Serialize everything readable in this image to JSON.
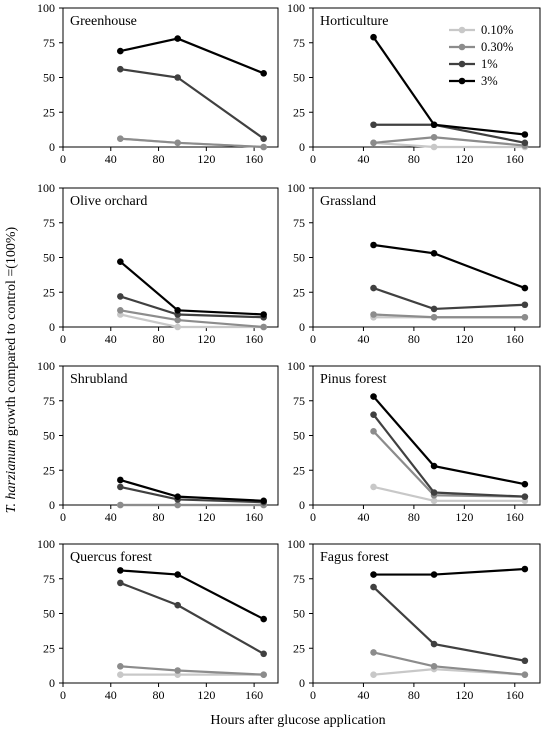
{
  "figure": {
    "ylabel_italic": "T. harzianum",
    "ylabel_rest": " growth compared to control =(100%)",
    "xlabel": "Hours after glucose application"
  },
  "legend": [
    "0.10%",
    "0.30%",
    "1%",
    "3%"
  ],
  "colors": {
    "0.10%": "#c8c8c8",
    "0.30%": "#8c8c8c",
    "1%": "#404040",
    "3%": "#000000"
  },
  "chart_data": [
    {
      "type": "line",
      "title": "Greenhouse",
      "x": [
        48,
        96,
        168
      ],
      "xlim": [
        0,
        180
      ],
      "ylim": [
        0,
        100
      ],
      "xticks": [
        "0",
        "40",
        "80",
        "120",
        "160"
      ],
      "yticks": [
        "0",
        "25",
        "50",
        "75",
        "100"
      ],
      "series": [
        {
          "name": "0.10%",
          "values": [
            6,
            3,
            0
          ]
        },
        {
          "name": "0.30%",
          "values": [
            6,
            3,
            0
          ]
        },
        {
          "name": "1%",
          "values": [
            56,
            50,
            6
          ]
        },
        {
          "name": "3%",
          "values": [
            69,
            78,
            53
          ]
        }
      ]
    },
    {
      "type": "line",
      "title": "Horticulture",
      "x": [
        48,
        96,
        168
      ],
      "xlim": [
        0,
        180
      ],
      "ylim": [
        0,
        100
      ],
      "xticks": [
        "0",
        "40",
        "80",
        "120",
        "160"
      ],
      "yticks": [
        "0",
        "25",
        "50",
        "75",
        "100"
      ],
      "series": [
        {
          "name": "0.10%",
          "values": [
            3,
            0,
            0
          ]
        },
        {
          "name": "0.30%",
          "values": [
            3,
            7,
            1
          ]
        },
        {
          "name": "1%",
          "values": [
            16,
            16,
            3
          ]
        },
        {
          "name": "3%",
          "values": [
            79,
            16,
            9
          ]
        }
      ]
    },
    {
      "type": "line",
      "title": "Olive orchard",
      "x": [
        48,
        96,
        168
      ],
      "xlim": [
        0,
        180
      ],
      "ylim": [
        0,
        100
      ],
      "xticks": [
        "0",
        "40",
        "80",
        "120",
        "160"
      ],
      "yticks": [
        "0",
        "25",
        "50",
        "75",
        "100"
      ],
      "series": [
        {
          "name": "0.10%",
          "values": [
            9,
            0,
            0
          ]
        },
        {
          "name": "0.30%",
          "values": [
            12,
            5,
            0
          ]
        },
        {
          "name": "1%",
          "values": [
            22,
            9,
            7
          ]
        },
        {
          "name": "3%",
          "values": [
            47,
            12,
            9
          ]
        }
      ]
    },
    {
      "type": "line",
      "title": "Grassland",
      "x": [
        48,
        96,
        168
      ],
      "xlim": [
        0,
        180
      ],
      "ylim": [
        0,
        100
      ],
      "xticks": [
        "0",
        "40",
        "80",
        "120",
        "160"
      ],
      "yticks": [
        "0",
        "25",
        "50",
        "75",
        "100"
      ],
      "series": [
        {
          "name": "0.10%",
          "values": [
            7,
            7,
            7
          ]
        },
        {
          "name": "0.30%",
          "values": [
            9,
            7,
            7
          ]
        },
        {
          "name": "1%",
          "values": [
            28,
            13,
            16
          ]
        },
        {
          "name": "3%",
          "values": [
            59,
            53,
            28
          ]
        }
      ]
    },
    {
      "type": "line",
      "title": "Shrubland",
      "x": [
        48,
        96,
        168
      ],
      "xlim": [
        0,
        180
      ],
      "ylim": [
        0,
        100
      ],
      "xticks": [
        "0",
        "40",
        "80",
        "120",
        "160"
      ],
      "yticks": [
        "0",
        "25",
        "50",
        "75",
        "100"
      ],
      "series": [
        {
          "name": "0.10%",
          "values": [
            0,
            0,
            0
          ]
        },
        {
          "name": "0.30%",
          "values": [
            0,
            0,
            0
          ]
        },
        {
          "name": "1%",
          "values": [
            13,
            4,
            2
          ]
        },
        {
          "name": "3%",
          "values": [
            18,
            6,
            3
          ]
        }
      ]
    },
    {
      "type": "line",
      "title": "Pinus forest",
      "x": [
        48,
        96,
        168
      ],
      "xlim": [
        0,
        180
      ],
      "ylim": [
        0,
        100
      ],
      "xticks": [
        "0",
        "40",
        "80",
        "120",
        "160"
      ],
      "yticks": [
        "0",
        "25",
        "50",
        "75",
        "100"
      ],
      "series": [
        {
          "name": "0.10%",
          "values": [
            13,
            3,
            3
          ]
        },
        {
          "name": "0.30%",
          "values": [
            53,
            7,
            6
          ]
        },
        {
          "name": "1%",
          "values": [
            65,
            9,
            6
          ]
        },
        {
          "name": "3%",
          "values": [
            78,
            28,
            15
          ]
        }
      ]
    },
    {
      "type": "line",
      "title": "Quercus forest",
      "x": [
        48,
        96,
        168
      ],
      "xlim": [
        0,
        180
      ],
      "ylim": [
        0,
        100
      ],
      "xticks": [
        "0",
        "40",
        "80",
        "120",
        "160"
      ],
      "yticks": [
        "0",
        "25",
        "50",
        "75",
        "100"
      ],
      "series": [
        {
          "name": "0.10%",
          "values": [
            6,
            6,
            6
          ]
        },
        {
          "name": "0.30%",
          "values": [
            12,
            9,
            6
          ]
        },
        {
          "name": "1%",
          "values": [
            72,
            56,
            21
          ]
        },
        {
          "name": "3%",
          "values": [
            81,
            78,
            46
          ]
        }
      ]
    },
    {
      "type": "line",
      "title": "Fagus forest",
      "x": [
        48,
        96,
        168
      ],
      "xlim": [
        0,
        180
      ],
      "ylim": [
        0,
        100
      ],
      "xticks": [
        "0",
        "40",
        "80",
        "120",
        "160"
      ],
      "yticks": [
        "0",
        "25",
        "50",
        "75",
        "100"
      ],
      "series": [
        {
          "name": "0.10%",
          "values": [
            6,
            10,
            6
          ]
        },
        {
          "name": "0.30%",
          "values": [
            22,
            12,
            6
          ]
        },
        {
          "name": "1%",
          "values": [
            69,
            28,
            16
          ]
        },
        {
          "name": "3%",
          "values": [
            78,
            78,
            82
          ]
        }
      ]
    }
  ]
}
